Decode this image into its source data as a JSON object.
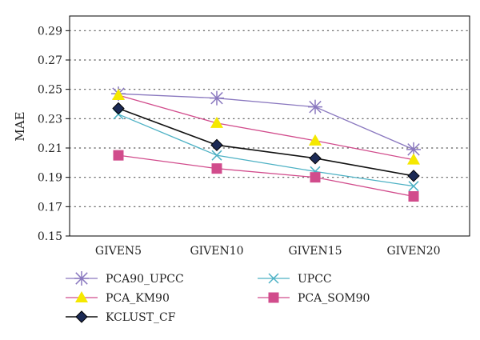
{
  "chart_data": {
    "type": "line",
    "title": "",
    "xlabel": "",
    "ylabel": "MAE",
    "categories": [
      "GIVEN5",
      "GIVEN10",
      "GIVEN15",
      "GIVEN20"
    ],
    "ylim": [
      0.15,
      0.3
    ],
    "yticks": [
      "0.15",
      "0.17",
      "0.19",
      "0.21",
      "0.23",
      "0.25",
      "0.27",
      "0.29"
    ],
    "grid": "horizontal dotted",
    "legend_position": "bottom",
    "series": [
      {
        "name": "PCA90_UPCC",
        "values": [
          0.247,
          0.244,
          0.238,
          0.209
        ],
        "color": "#8a78bf",
        "marker": "asterisk"
      },
      {
        "name": "UPCC",
        "values": [
          0.233,
          0.205,
          0.194,
          0.184
        ],
        "color": "#4db1c4",
        "marker": "x"
      },
      {
        "name": "PCA_KM90",
        "values": [
          0.246,
          0.227,
          0.215,
          0.202
        ],
        "color": "#f5e800",
        "marker": "triangle",
        "line_color": "#d14c8c"
      },
      {
        "name": "PCA_SOM90",
        "values": [
          0.205,
          0.196,
          0.19,
          0.177
        ],
        "color": "#d14c8c",
        "marker": "square"
      },
      {
        "name": "KCLUST_CF",
        "values": [
          0.237,
          0.212,
          0.203,
          0.191
        ],
        "color": "#111111",
        "marker": "diamond",
        "marker_fill": "#1c2a55"
      }
    ]
  }
}
